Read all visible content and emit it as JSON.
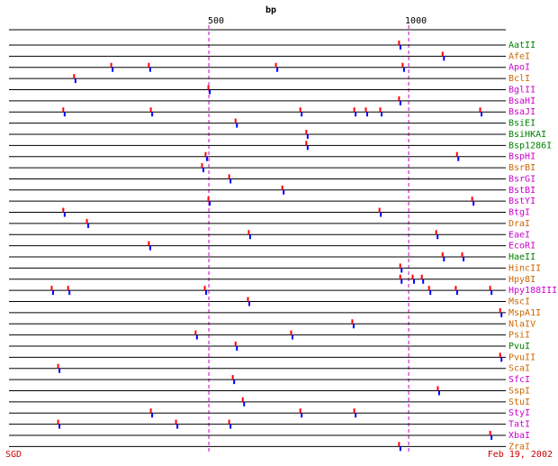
{
  "chart_data": {
    "type": "restriction-map",
    "title": "bp",
    "xlim": [
      0,
      1243
    ],
    "xticks": [
      500,
      1000
    ],
    "footer_left": "SGD",
    "footer_right": "Feb 19, 2002",
    "series": [
      {
        "name": "AatII",
        "color": "#008000",
        "values": [
          977
        ]
      },
      {
        "name": "AfeI",
        "color": "#cc6600",
        "values": [
          1086
        ]
      },
      {
        "name": "ApoI",
        "color": "#cc00cc",
        "values": [
          257,
          351,
          669,
          986
        ]
      },
      {
        "name": "BclI",
        "color": "#cc6600",
        "values": [
          164
        ]
      },
      {
        "name": "BglII",
        "color": "#cc00cc",
        "values": [
          500
        ]
      },
      {
        "name": "BsaHI",
        "color": "#cc00cc",
        "values": [
          977
        ]
      },
      {
        "name": "BsaJI",
        "color": "#cc00cc",
        "values": [
          137,
          356,
          730,
          865,
          894,
          930,
          1180
        ]
      },
      {
        "name": "BsiEI",
        "color": "#008000",
        "values": [
          568
        ]
      },
      {
        "name": "BsiHKAI",
        "color": "#008000",
        "values": [
          745
        ]
      },
      {
        "name": "Bsp1286I",
        "color": "#008000",
        "values": [
          745
        ]
      },
      {
        "name": "BspHI",
        "color": "#cc00cc",
        "values": [
          493,
          1122
        ]
      },
      {
        "name": "BsrBI",
        "color": "#cc6600",
        "values": [
          484
        ]
      },
      {
        "name": "BsrGI",
        "color": "#cc00cc",
        "values": [
          552
        ]
      },
      {
        "name": "BstBI",
        "color": "#cc00cc",
        "values": [
          685
        ]
      },
      {
        "name": "BstYI",
        "color": "#cc00cc",
        "values": [
          500,
          1160
        ]
      },
      {
        "name": "BtgI",
        "color": "#cc00cc",
        "values": [
          137,
          928
        ]
      },
      {
        "name": "DraI",
        "color": "#cc6600",
        "values": [
          196
        ]
      },
      {
        "name": "EaeI",
        "color": "#cc00cc",
        "values": [
          601,
          1070
        ]
      },
      {
        "name": "EcoRI",
        "color": "#cc00cc",
        "values": [
          351
        ]
      },
      {
        "name": "HaeII",
        "color": "#008000",
        "values": [
          1086,
          1135
        ]
      },
      {
        "name": "HincII",
        "color": "#cc6600",
        "values": [
          980
        ]
      },
      {
        "name": "Hpy8I",
        "color": "#cc6600",
        "values": [
          980,
          1011,
          1034
        ]
      },
      {
        "name": "Hpy188III",
        "color": "#cc00cc",
        "values": [
          108,
          149,
          491,
          1052,
          1119,
          1205
        ]
      },
      {
        "name": "MscI",
        "color": "#cc6600",
        "values": [
          599
        ]
      },
      {
        "name": "MspA1I",
        "color": "#cc6600",
        "values": [
          1230
        ]
      },
      {
        "name": "NlaIV",
        "color": "#cc6600",
        "values": [
          860
        ]
      },
      {
        "name": "PsiI",
        "color": "#cc6600",
        "values": [
          468,
          707
        ]
      },
      {
        "name": "PvuI",
        "color": "#008000",
        "values": [
          568
        ]
      },
      {
        "name": "PvuII",
        "color": "#cc6600",
        "values": [
          1230
        ]
      },
      {
        "name": "ScaI",
        "color": "#cc6600",
        "values": [
          124
        ]
      },
      {
        "name": "SfcI",
        "color": "#cc00cc",
        "values": [
          561
        ]
      },
      {
        "name": "SspI",
        "color": "#cc6600",
        "values": [
          1074
        ]
      },
      {
        "name": "StuI",
        "color": "#cc6600",
        "values": [
          586
        ]
      },
      {
        "name": "StyI",
        "color": "#cc00cc",
        "values": [
          356,
          730,
          865
        ]
      },
      {
        "name": "TatI",
        "color": "#cc00cc",
        "values": [
          124,
          419,
          552
        ]
      },
      {
        "name": "XbaI",
        "color": "#cc00cc",
        "values": [
          1205
        ]
      },
      {
        "name": "ZraI",
        "color": "#cc6600",
        "values": [
          977
        ]
      }
    ]
  }
}
